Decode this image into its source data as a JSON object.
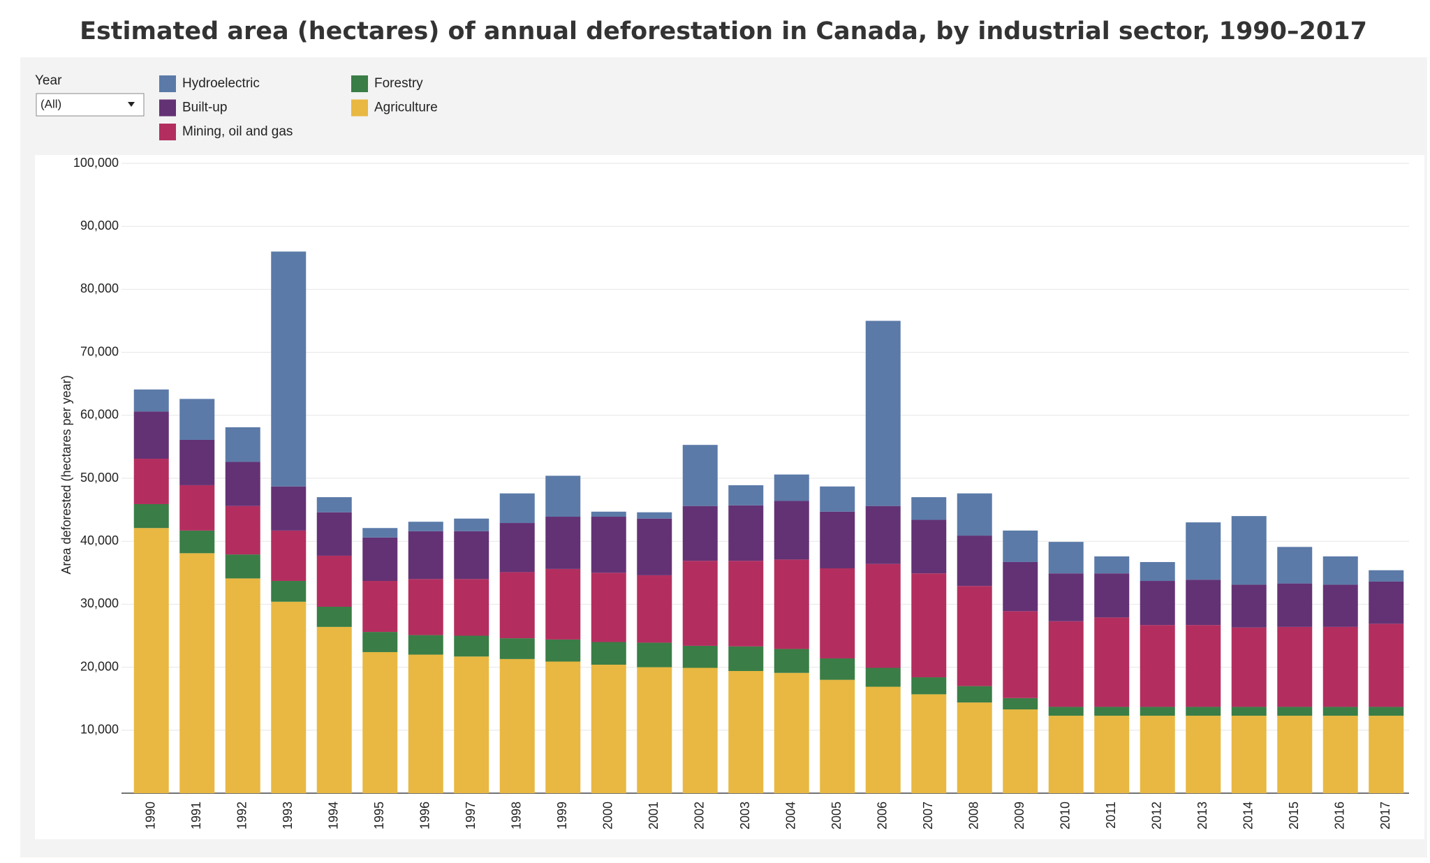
{
  "chart_data": {
    "type": "stacked-bar",
    "title": "Estimated area (hectares) of annual deforestation in Canada, by industrial sector, 1990–2017",
    "y_label": "Area deforested (hectares per year)",
    "filter": {
      "label": "Year",
      "value": "(All)"
    },
    "categories": [
      "1990",
      "1991",
      "1992",
      "1993",
      "1994",
      "1995",
      "1996",
      "1997",
      "1998",
      "1999",
      "2000",
      "2001",
      "2002",
      "2003",
      "2004",
      "2005",
      "2006",
      "2007",
      "2008",
      "2009",
      "2010",
      "2011",
      "2012",
      "2013",
      "2014",
      "2015",
      "2016",
      "2017"
    ],
    "series": [
      {
        "name": "Hydroelectric",
        "color": "#5b7aa8",
        "values": [
          3500,
          6500,
          5500,
          37300,
          2400,
          1500,
          1500,
          2000,
          4700,
          6500,
          800,
          1000,
          9700,
          3200,
          4200,
          4000,
          29400,
          3600,
          6700,
          5000,
          5000,
          2700,
          3000,
          9100,
          10900,
          5800,
          4500,
          1800
        ]
      },
      {
        "name": "Built-up",
        "color": "#633274",
        "values": [
          7500,
          7200,
          7000,
          7000,
          6900,
          6900,
          7600,
          7600,
          7800,
          8300,
          8900,
          9000,
          8700,
          8800,
          9300,
          9000,
          9200,
          8500,
          8000,
          7800,
          7600,
          7000,
          7000,
          7200,
          6800,
          6900,
          6700,
          6700
        ]
      },
      {
        "name": "Mining, oil and gas",
        "color": "#b32e5f",
        "values": [
          7200,
          7200,
          7700,
          8000,
          8100,
          8100,
          8900,
          9000,
          10500,
          11200,
          11000,
          10700,
          13500,
          13600,
          14200,
          14300,
          16500,
          16500,
          15900,
          13800,
          13600,
          14200,
          13000,
          13000,
          12600,
          12700,
          12700,
          13200
        ]
      },
      {
        "name": "Forestry",
        "color": "#3a7d46",
        "values": [
          3800,
          3600,
          3800,
          3300,
          3200,
          3200,
          3100,
          3300,
          3300,
          3500,
          3600,
          3900,
          3500,
          3900,
          3800,
          3400,
          3000,
          2700,
          2600,
          1800,
          1400,
          1400,
          1400,
          1400,
          1400,
          1400,
          1400,
          1400
        ]
      },
      {
        "name": "Agriculture",
        "color": "#e8b842",
        "values": [
          42100,
          38100,
          34100,
          30400,
          26400,
          22400,
          22000,
          21700,
          21300,
          20900,
          20400,
          20000,
          19900,
          19400,
          19100,
          18000,
          16900,
          15700,
          14400,
          13300,
          12300,
          12300,
          12300,
          12300,
          12300,
          12300,
          12300,
          12300
        ]
      }
    ],
    "ylim": [
      0,
      100000
    ],
    "yticks": [
      {
        "value": 10000,
        "label": "10,000"
      },
      {
        "value": 20000,
        "label": "20,000"
      },
      {
        "value": 30000,
        "label": "30,000"
      },
      {
        "value": 40000,
        "label": "40,000"
      },
      {
        "value": 50000,
        "label": "50,000"
      },
      {
        "value": 60000,
        "label": "60,000"
      },
      {
        "value": 70000,
        "label": "70,000"
      },
      {
        "value": 80000,
        "label": "80,000"
      },
      {
        "value": 90000,
        "label": "90,000"
      },
      {
        "value": 100000,
        "label": "100,000"
      }
    ],
    "grid": true
  }
}
